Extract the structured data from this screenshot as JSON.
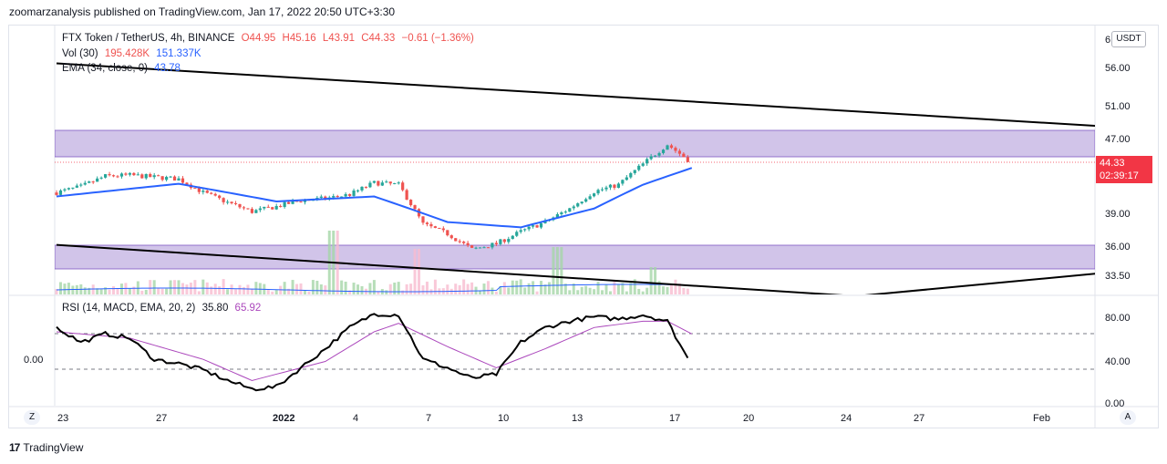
{
  "header": {
    "text": "zoomarzanalysis published on TradingView.com, Jan 17, 2022 20:50 UTC+3:30"
  },
  "legend": {
    "symbol": "FTX Token / TetherUS, 4h, BINANCE",
    "open": "O44.95",
    "high": "H45.16",
    "low": "L43.91",
    "close": "C44.33",
    "change": "−0.61 (−1.36%)",
    "vol_label": "Vol (30)",
    "vol_val1": "195.428K",
    "vol_val2": "151.337K",
    "ema_label": "EMA (34, close, 0)",
    "ema_val": "43.78",
    "rsi_label": "RSI (14, MACD, EMA, 20, 2)",
    "rsi_val1": "35.80",
    "rsi_val2": "65.92"
  },
  "price_axis": {
    "currency_button": "USDT",
    "top_partial": "6",
    "ticks": [
      "56.00",
      "51.00",
      "47.00",
      "39.00",
      "36.00",
      "33.50"
    ],
    "last_price": "44.33",
    "countdown": "02:39:17"
  },
  "rsi_axis": {
    "ticks": [
      "80.00",
      "40.00",
      "0.00"
    ],
    "left_label": "0.00"
  },
  "time_axis": {
    "labels": [
      "23",
      "27",
      "2022",
      "4",
      "7",
      "10",
      "13",
      "17",
      "20",
      "24",
      "27",
      "Feb"
    ],
    "left_button": "Z",
    "right_button": "A"
  },
  "footer": {
    "logo_glyph": "17",
    "brand": "TradingView"
  },
  "colors": {
    "up": "#26a69a",
    "down": "#ef5350",
    "ema": "#2962ff",
    "zone": "#d1c4e9",
    "rsi": "#000000",
    "rsi_ma": "#ab47bc",
    "price_tag": "#f23645"
  },
  "chart_data": [
    {
      "type": "candlestick",
      "title": "FTX Token / TetherUS, 4h, BINANCE",
      "x_range": [
        "Dec 22 2021",
        "Feb 2022"
      ],
      "y_ticks": [
        33.5,
        36,
        39,
        47,
        51,
        56
      ],
      "log_scale": true,
      "close_path": [
        {
          "date": "Dec 22",
          "close": 41.2
        },
        {
          "date": "Dec 23",
          "close": 41.8
        },
        {
          "date": "Dec 24",
          "close": 42.9
        },
        {
          "date": "Dec 25",
          "close": 43.0
        },
        {
          "date": "Dec 26",
          "close": 42.8
        },
        {
          "date": "Dec 27",
          "close": 42.6
        },
        {
          "date": "Dec 28",
          "close": 41.2
        },
        {
          "date": "Dec 29",
          "close": 40.2
        },
        {
          "date": "Dec 30",
          "close": 39.3
        },
        {
          "date": "Dec 31",
          "close": 39.8
        },
        {
          "date": "Jan 1",
          "close": 40.4
        },
        {
          "date": "Jan 2",
          "close": 40.6
        },
        {
          "date": "Jan 3",
          "close": 41.0
        },
        {
          "date": "Jan 4",
          "close": 42.2
        },
        {
          "date": "Jan 5",
          "close": 42.0
        },
        {
          "date": "Jan 6",
          "close": 38.1
        },
        {
          "date": "Jan 7",
          "close": 37.2
        },
        {
          "date": "Jan 8",
          "close": 35.8
        },
        {
          "date": "Jan 9",
          "close": 36.3
        },
        {
          "date": "Jan 10",
          "close": 37.4
        },
        {
          "date": "Jan 11",
          "close": 38.3
        },
        {
          "date": "Jan 12",
          "close": 39.6
        },
        {
          "date": "Jan 13",
          "close": 41.3
        },
        {
          "date": "Jan 14",
          "close": 42.0
        },
        {
          "date": "Jan 15",
          "close": 44.2
        },
        {
          "date": "Jan 16",
          "close": 46.4
        },
        {
          "date": "Jan 17",
          "close": 44.33
        }
      ],
      "ema_34": [
        {
          "date": "Dec 22",
          "value": 40.8
        },
        {
          "date": "Dec 27",
          "value": 42.1
        },
        {
          "date": "Dec 31",
          "value": 40.3
        },
        {
          "date": "Jan 4",
          "value": 40.8
        },
        {
          "date": "Jan 7",
          "value": 38.3
        },
        {
          "date": "Jan 10",
          "value": 37.8
        },
        {
          "date": "Jan 13",
          "value": 39.6
        },
        {
          "date": "Jan 15",
          "value": 42.0
        },
        {
          "date": "Jan 17",
          "value": 43.78
        }
      ],
      "zones": [
        {
          "from": 45.1,
          "to": 47.6
        },
        {
          "from": 34.2,
          "to": 36.2
        }
      ],
      "trendlines": [
        {
          "from": {
            "date": "Dec 22",
            "value": 56.7
          },
          "to": {
            "date": "Feb 3",
            "value": 48.5
          }
        },
        {
          "from": {
            "date": "Dec 22",
            "value": 36.2
          },
          "to": {
            "date": "Jan 31",
            "value": 31.0
          }
        },
        {
          "from": {
            "date": "Jan 21",
            "value": 31.4
          },
          "to": {
            "date": "Feb 3",
            "value": 33.8
          }
        }
      ],
      "volume": "Vol (30) 195.428K / 151.337K"
    },
    {
      "type": "line",
      "title": "RSI (14, MACD, EMA, 20, 2)",
      "y_ticks": [
        0,
        40,
        80
      ],
      "guides": [
        40,
        67
      ],
      "series": [
        {
          "name": "RSI",
          "values": [
            {
              "date": "Dec 22",
              "value": 72
            },
            {
              "date": "Dec 23",
              "value": 58
            },
            {
              "date": "Dec 24",
              "value": 66
            },
            {
              "date": "Dec 25",
              "value": 62
            },
            {
              "date": "Dec 26",
              "value": 42
            },
            {
              "date": "Dec 27",
              "value": 38
            },
            {
              "date": "Dec 28",
              "value": 32
            },
            {
              "date": "Dec 29",
              "value": 22
            },
            {
              "date": "Dec 30",
              "value": 14
            },
            {
              "date": "Dec 31",
              "value": 16
            },
            {
              "date": "Jan 1",
              "value": 34
            },
            {
              "date": "Jan 2",
              "value": 52
            },
            {
              "date": "Jan 3",
              "value": 72
            },
            {
              "date": "Jan 4",
              "value": 85
            },
            {
              "date": "Jan 5",
              "value": 84
            },
            {
              "date": "Jan 6",
              "value": 42
            },
            {
              "date": "Jan 7",
              "value": 34
            },
            {
              "date": "Jan 8",
              "value": 24
            },
            {
              "date": "Jan 9",
              "value": 28
            },
            {
              "date": "Jan 10",
              "value": 58
            },
            {
              "date": "Jan 11",
              "value": 72
            },
            {
              "date": "Jan 12",
              "value": 78
            },
            {
              "date": "Jan 13",
              "value": 82
            },
            {
              "date": "Jan 14",
              "value": 80
            },
            {
              "date": "Jan 15",
              "value": 84
            },
            {
              "date": "Jan 16",
              "value": 78
            },
            {
              "date": "Jan 17",
              "value": 35.8
            }
          ]
        },
        {
          "name": "MA",
          "values": [
            {
              "date": "Dec 22",
              "value": 68
            },
            {
              "date": "Dec 25",
              "value": 62
            },
            {
              "date": "Dec 28",
              "value": 42
            },
            {
              "date": "Dec 30",
              "value": 22
            },
            {
              "date": "Jan 2",
              "value": 40
            },
            {
              "date": "Jan 4",
              "value": 68
            },
            {
              "date": "Jan 5",
              "value": 76
            },
            {
              "date": "Jan 7",
              "value": 54
            },
            {
              "date": "Jan 9",
              "value": 34
            },
            {
              "date": "Jan 11",
              "value": 52
            },
            {
              "date": "Jan 13",
              "value": 72
            },
            {
              "date": "Jan 15",
              "value": 78
            },
            {
              "date": "Jan 16",
              "value": 78
            },
            {
              "date": "Jan 17",
              "value": 65.92
            }
          ]
        }
      ]
    }
  ]
}
